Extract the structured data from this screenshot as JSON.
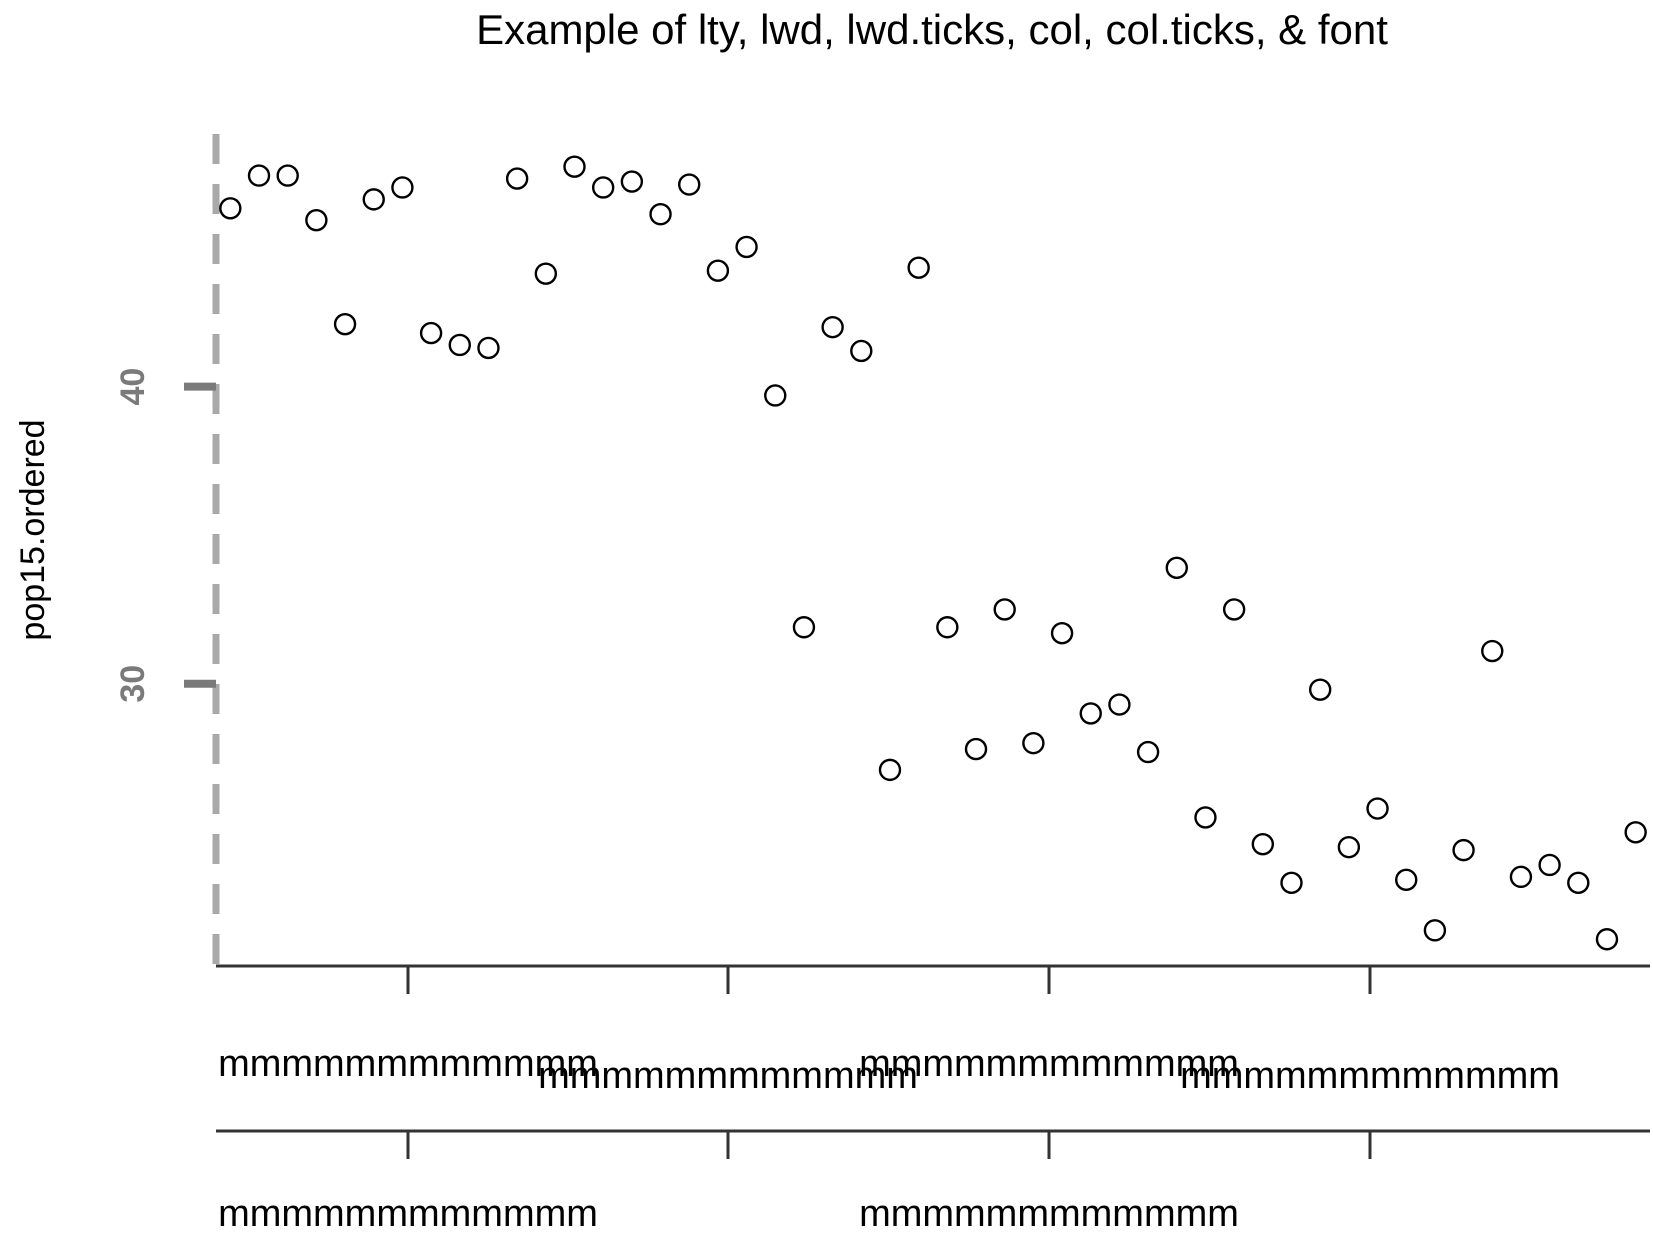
{
  "chart_data": {
    "type": "scatter",
    "title": "Example of lty, lwd, lwd.ticks, col, col.ticks, & font",
    "xlabel": "",
    "ylabel": "pop15.ordered",
    "ylim": [
      20.5,
      48.5
    ],
    "yticks": [
      30,
      40
    ],
    "ytick_labels": [
      "30",
      "40"
    ],
    "y_axis_style": {
      "line": "dashed",
      "color": "#a9a9a9",
      "tick_color": "#7a7a7a"
    },
    "x_axis_1": {
      "tick_labels": [
        "mmmmmmmmmmmm",
        "mmmmmmmmmmmm",
        "mmmmmmmmmmmm",
        "mmmmmmmmmmmm"
      ]
    },
    "x_axis_2": {
      "tick_labels": [
        "mmmmmmmmmmmm",
        "",
        "mmmmmmmmmmmm",
        ""
      ]
    },
    "xlim": [
      0.5,
      50.5
    ],
    "grid": false,
    "points": {
      "x": [
        1,
        2,
        3,
        4,
        5,
        6,
        7,
        8,
        9,
        10,
        11,
        12,
        13,
        14,
        15,
        16,
        17,
        18,
        19,
        20,
        21,
        22,
        23,
        24,
        25,
        26,
        27,
        28,
        29,
        30,
        31,
        32,
        33,
        34,
        35,
        36,
        37,
        38,
        39,
        40,
        41,
        42,
        43,
        44,
        45,
        46,
        47,
        48,
        49,
        50
      ],
      "y": [
        46.0,
        47.1,
        47.1,
        45.6,
        42.1,
        46.3,
        46.7,
        41.8,
        41.4,
        41.3,
        47.0,
        43.8,
        47.4,
        46.7,
        46.9,
        45.8,
        46.8,
        43.9,
        44.7,
        39.7,
        31.9,
        42.0,
        41.2,
        27.1,
        44.0,
        31.9,
        27.8,
        32.5,
        28.0,
        31.7,
        29.0,
        29.3,
        27.7,
        33.9,
        25.5,
        32.5,
        24.6,
        23.3,
        29.8,
        24.5,
        25.8,
        23.4,
        21.7,
        24.4,
        31.1,
        23.5,
        23.9,
        23.3,
        21.4,
        25.0
      ]
    }
  }
}
